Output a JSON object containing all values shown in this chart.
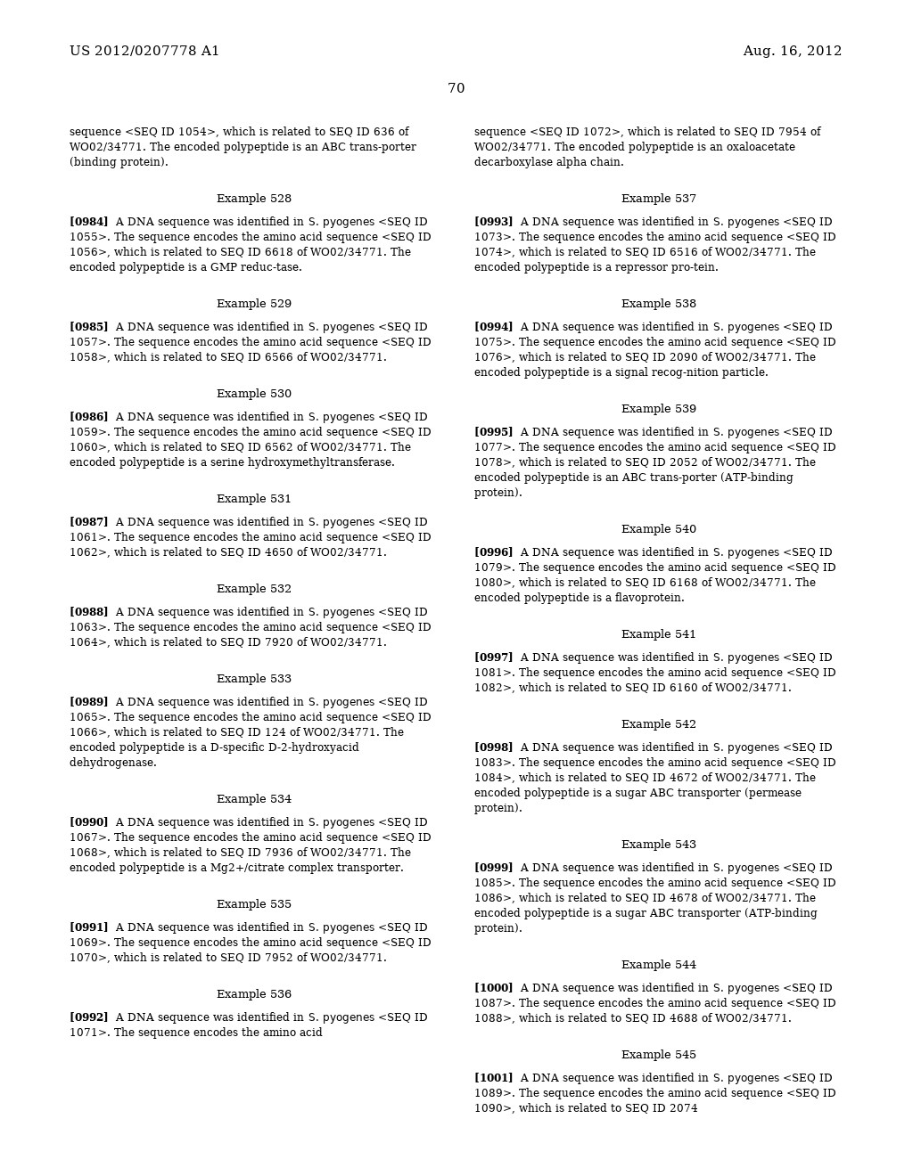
{
  "header_left": "US 2012/0207778 A1",
  "header_right": "Aug. 16, 2012",
  "page_number": "70",
  "background_color": "#ffffff",
  "body_fs": 8.0,
  "example_fs": 8.5,
  "header_fs": 10.0,
  "left_column": [
    {
      "type": "continuation",
      "text": "sequence <SEQ ID 1054>, which is related to SEQ ID 636 of WO02/34771. The encoded polypeptide is an ABC trans-porter (binding protein)."
    },
    {
      "type": "example",
      "label": "Example 528"
    },
    {
      "type": "paragraph",
      "ref": "[0984]",
      "text": "A DNA sequence was identified in S. pyogenes <SEQ ID 1055>. The sequence encodes the amino acid sequence <SEQ ID 1056>, which is related to SEQ ID 6618 of WO02/34771. The encoded polypeptide is a GMP reduc-tase."
    },
    {
      "type": "example",
      "label": "Example 529"
    },
    {
      "type": "paragraph",
      "ref": "[0985]",
      "text": "A DNA sequence was identified in S. pyogenes <SEQ ID 1057>. The sequence encodes the amino acid sequence <SEQ ID 1058>, which is related to SEQ ID 6566 of WO02/34771."
    },
    {
      "type": "example",
      "label": "Example 530"
    },
    {
      "type": "paragraph",
      "ref": "[0986]",
      "text": "A DNA sequence was identified in S. pyogenes <SEQ ID 1059>. The sequence encodes the amino acid sequence <SEQ ID 1060>, which is related to SEQ ID 6562 of WO02/34771. The encoded polypeptide is a serine hydroxymethyltransferase."
    },
    {
      "type": "example",
      "label": "Example 531"
    },
    {
      "type": "paragraph",
      "ref": "[0987]",
      "text": "A DNA sequence was identified in S. pyogenes <SEQ ID 1061>. The sequence encodes the amino acid sequence <SEQ ID 1062>, which is related to SEQ ID 4650 of WO02/34771."
    },
    {
      "type": "example",
      "label": "Example 532"
    },
    {
      "type": "paragraph",
      "ref": "[0988]",
      "text": "A DNA sequence was identified in S. pyogenes <SEQ ID 1063>. The sequence encodes the amino acid sequence <SEQ ID 1064>, which is related to SEQ ID 7920 of WO02/34771."
    },
    {
      "type": "example",
      "label": "Example 533"
    },
    {
      "type": "paragraph",
      "ref": "[0989]",
      "text": "A DNA sequence was identified in S. pyogenes <SEQ ID 1065>. The sequence encodes the amino acid sequence <SEQ ID 1066>, which is related to SEQ ID 124 of WO02/34771. The encoded polypeptide is a D-specific D-2-hydroxyacid dehydrogenase."
    },
    {
      "type": "example",
      "label": "Example 534"
    },
    {
      "type": "paragraph",
      "ref": "[0990]",
      "text": "A DNA sequence was identified in S. pyogenes <SEQ ID 1067>. The sequence encodes the amino acid sequence <SEQ ID 1068>, which is related to SEQ ID 7936 of WO02/34771. The encoded polypeptide is a Mg2+/citrate complex transporter."
    },
    {
      "type": "example",
      "label": "Example 535"
    },
    {
      "type": "paragraph",
      "ref": "[0991]",
      "text": "A DNA sequence was identified in S. pyogenes <SEQ ID 1069>. The sequence encodes the amino acid sequence <SEQ ID 1070>, which is related to SEQ ID 7952 of WO02/34771."
    },
    {
      "type": "example",
      "label": "Example 536"
    },
    {
      "type": "paragraph",
      "ref": "[0992]",
      "text": "A DNA sequence was identified in S. pyogenes <SEQ ID 1071>. The sequence encodes the amino acid"
    }
  ],
  "right_column": [
    {
      "type": "continuation",
      "text": "sequence <SEQ ID 1072>, which is related to SEQ ID 7954 of WO02/34771. The encoded polypeptide is an oxaloacetate decarboxylase alpha chain."
    },
    {
      "type": "example",
      "label": "Example 537"
    },
    {
      "type": "paragraph",
      "ref": "[0993]",
      "text": "A DNA sequence was identified in S. pyogenes <SEQ ID 1073>. The sequence encodes the amino acid sequence <SEQ ID 1074>, which is related to SEQ ID 6516 of WO02/34771. The encoded polypeptide is a repressor pro-tein."
    },
    {
      "type": "example",
      "label": "Example 538"
    },
    {
      "type": "paragraph",
      "ref": "[0994]",
      "text": "A DNA sequence was identified in S. pyogenes <SEQ ID 1075>. The sequence encodes the amino acid sequence <SEQ ID 1076>, which is related to SEQ ID 2090 of WO02/34771. The encoded polypeptide is a signal recog-nition particle."
    },
    {
      "type": "example",
      "label": "Example 539"
    },
    {
      "type": "paragraph",
      "ref": "[0995]",
      "text": "A DNA sequence was identified in S. pyogenes <SEQ ID 1077>. The sequence encodes the amino acid sequence <SEQ ID 1078>, which is related to SEQ ID 2052 of WO02/34771. The encoded polypeptide is an ABC trans-porter (ATP-binding protein)."
    },
    {
      "type": "example",
      "label": "Example 540"
    },
    {
      "type": "paragraph",
      "ref": "[0996]",
      "text": "A DNA sequence was identified in S. pyogenes <SEQ ID 1079>. The sequence encodes the amino acid sequence <SEQ ID 1080>, which is related to SEQ ID 6168 of WO02/34771. The encoded polypeptide is a flavoprotein."
    },
    {
      "type": "example",
      "label": "Example 541"
    },
    {
      "type": "paragraph",
      "ref": "[0997]",
      "text": "A DNA sequence was identified in S. pyogenes <SEQ ID 1081>. The sequence encodes the amino acid sequence <SEQ ID 1082>, which is related to SEQ ID 6160 of WO02/34771."
    },
    {
      "type": "example",
      "label": "Example 542"
    },
    {
      "type": "paragraph",
      "ref": "[0998]",
      "text": "A DNA sequence was identified in S. pyogenes <SEQ ID 1083>. The sequence encodes the amino acid sequence <SEQ ID 1084>, which is related to SEQ ID 4672 of WO02/34771. The encoded polypeptide is a sugar ABC transporter (permease protein)."
    },
    {
      "type": "example",
      "label": "Example 543"
    },
    {
      "type": "paragraph",
      "ref": "[0999]",
      "text": "A DNA sequence was identified in S. pyogenes <SEQ ID 1085>. The sequence encodes the amino acid sequence <SEQ ID 1086>, which is related to SEQ ID 4678 of WO02/34771. The encoded polypeptide is a sugar ABC transporter (ATP-binding protein)."
    },
    {
      "type": "example",
      "label": "Example 544"
    },
    {
      "type": "paragraph",
      "ref": "[1000]",
      "text": "A DNA sequence was identified in S. pyogenes <SEQ ID 1087>. The sequence encodes the amino acid sequence <SEQ ID 1088>, which is related to SEQ ID 4688 of WO02/34771."
    },
    {
      "type": "example",
      "label": "Example 545"
    },
    {
      "type": "paragraph",
      "ref": "[1001]",
      "text": "A DNA sequence was identified in S. pyogenes <SEQ ID 1089>. The sequence encodes the amino acid sequence <SEQ ID 1090>, which is related to SEQ ID 2074"
    }
  ]
}
